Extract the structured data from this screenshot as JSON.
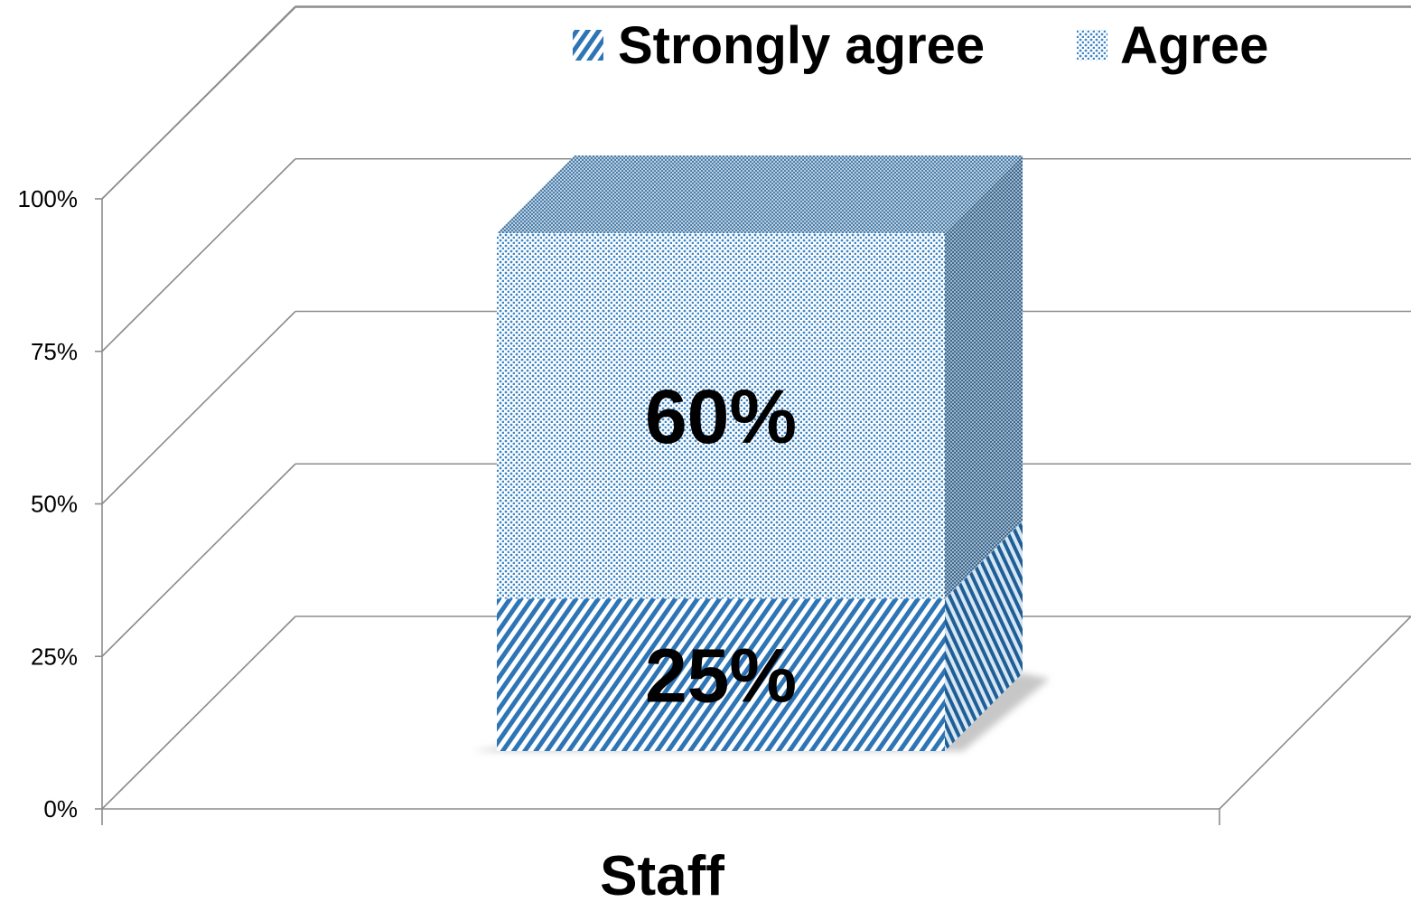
{
  "chart_data": {
    "type": "bar",
    "stacked": true,
    "three_d": true,
    "categories": [
      "Staff"
    ],
    "series": [
      {
        "name": "Strongly agree",
        "values": [
          25
        ],
        "data_label": "25%",
        "color": "#2e75b6",
        "pattern": "diagonal-stripes"
      },
      {
        "name": "Agree",
        "values": [
          60
        ],
        "data_label": "60%",
        "color": "#4f93c9",
        "pattern": "dots"
      }
    ],
    "ylim": [
      0,
      100
    ],
    "y_ticks": [
      0,
      25,
      50,
      75,
      100
    ],
    "y_tick_labels": [
      "0%",
      "25%",
      "50%",
      "75%",
      "100%"
    ],
    "grid": true,
    "legend_position": "top-right",
    "title": "",
    "xlabel": "",
    "ylabel": ""
  }
}
